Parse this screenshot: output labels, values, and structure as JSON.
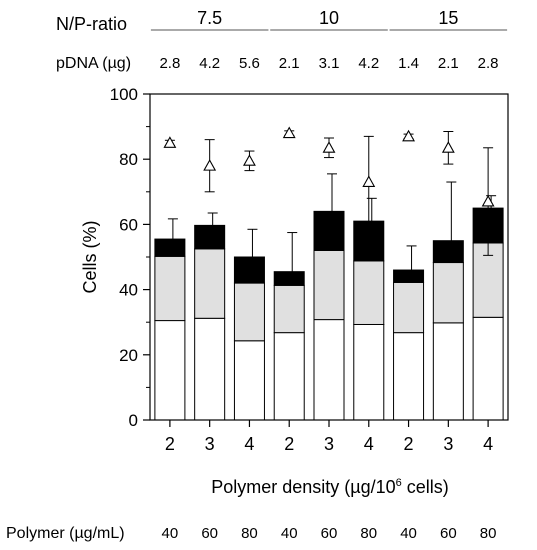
{
  "header": {
    "ratio_label": "N/P-ratio",
    "ratio_groups": [
      "7.5",
      "10",
      "15"
    ],
    "pdna_label": "pDNA (µg)",
    "pdna_values": [
      "2.8",
      "4.2",
      "5.6",
      "2.1",
      "3.1",
      "4.2",
      "1.4",
      "2.1",
      "2.8"
    ]
  },
  "footer": {
    "polymer_label": "Polymer (µg/mL)",
    "polymer_values": [
      "40",
      "60",
      "80",
      "40",
      "60",
      "80",
      "40",
      "60",
      "80"
    ]
  },
  "chart_data": {
    "type": "bar",
    "stacked": true,
    "xlabel_pre": "Polymer density (µg/10",
    "xlabel_sup": "6",
    "xlabel_post": " cells)",
    "ylabel": "Cells (%)",
    "ylim": [
      0,
      100
    ],
    "yticks": [
      "0",
      "20",
      "40",
      "60",
      "80",
      "100"
    ],
    "categories": [
      "2",
      "3",
      "4",
      "2",
      "3",
      "4",
      "2",
      "3",
      "4"
    ],
    "series": [
      {
        "values": [
          30.5,
          31.2,
          24.3,
          26.8,
          30.8,
          29.3,
          26.8,
          29.8,
          31.5
        ],
        "color": "#ffffff"
      },
      {
        "values": [
          19.7,
          21.3,
          17.7,
          14.5,
          21.2,
          19.5,
          15.4,
          18.5,
          22.8
        ],
        "color": "#e0e0e0"
      },
      {
        "values": [
          5.3,
          7.2,
          8.0,
          4.2,
          12.0,
          12.2,
          3.8,
          6.7,
          10.7
        ],
        "color": "#000000"
      }
    ],
    "bar_error": [
      6.2,
      3.8,
      8.5,
      12.0,
      11.5,
      7.0,
      7.4,
      18.0,
      3.8
    ],
    "triangle_values": [
      85.0,
      78.0,
      79.5,
      88.0,
      83.5,
      73.0,
      87.0,
      83.5,
      67.0
    ],
    "triangle_error": [
      0.8,
      8.0,
      3.0,
      0.7,
      3.0,
      14.0,
      0.7,
      5.0,
      16.5
    ]
  }
}
